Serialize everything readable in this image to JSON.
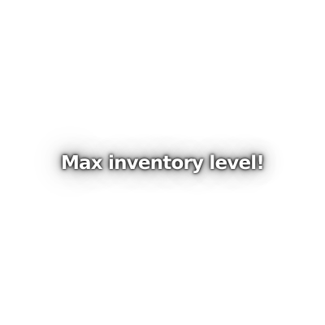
{
  "notification": {
    "message": "Max inventory level!"
  },
  "colors": {
    "background": "#ffffff",
    "text": "#ffffff",
    "glow": "#000000"
  }
}
